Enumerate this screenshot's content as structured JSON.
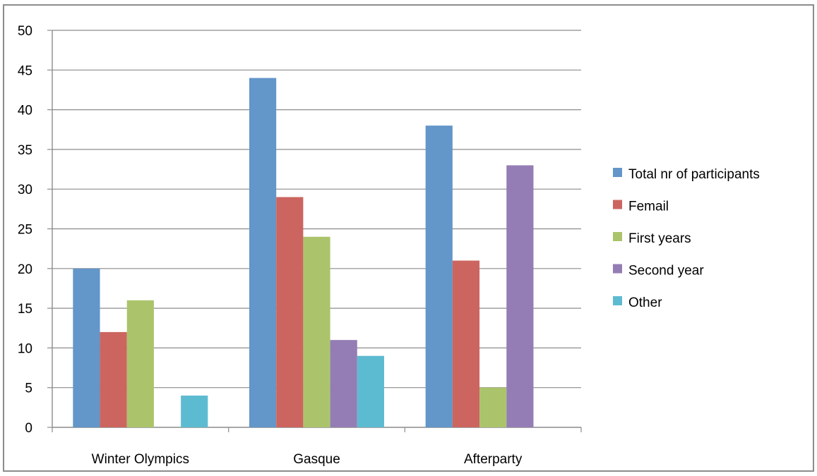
{
  "chart_data": {
    "type": "bar",
    "title": "",
    "xlabel": "",
    "ylabel": "",
    "categories": [
      "Winter Olympics",
      "Gasque",
      "Afterparty"
    ],
    "series": [
      {
        "name": "Total nr of participants",
        "color": "#6396c9",
        "values": [
          20,
          44,
          38
        ]
      },
      {
        "name": "Femail",
        "color": "#cc6560",
        "values": [
          12,
          29,
          21
        ]
      },
      {
        "name": "First years",
        "color": "#abc46b",
        "values": [
          16,
          24,
          5
        ]
      },
      {
        "name": "Second year",
        "color": "#947db4",
        "values": [
          null,
          11,
          33
        ]
      },
      {
        "name": "Other",
        "color": "#5dbbd1",
        "values": [
          4,
          9,
          null
        ]
      }
    ],
    "ylim": [
      0,
      50
    ],
    "yticks": [
      0,
      5,
      10,
      15,
      20,
      25,
      30,
      35,
      40,
      45,
      50
    ],
    "grid": true,
    "legend": "right"
  }
}
